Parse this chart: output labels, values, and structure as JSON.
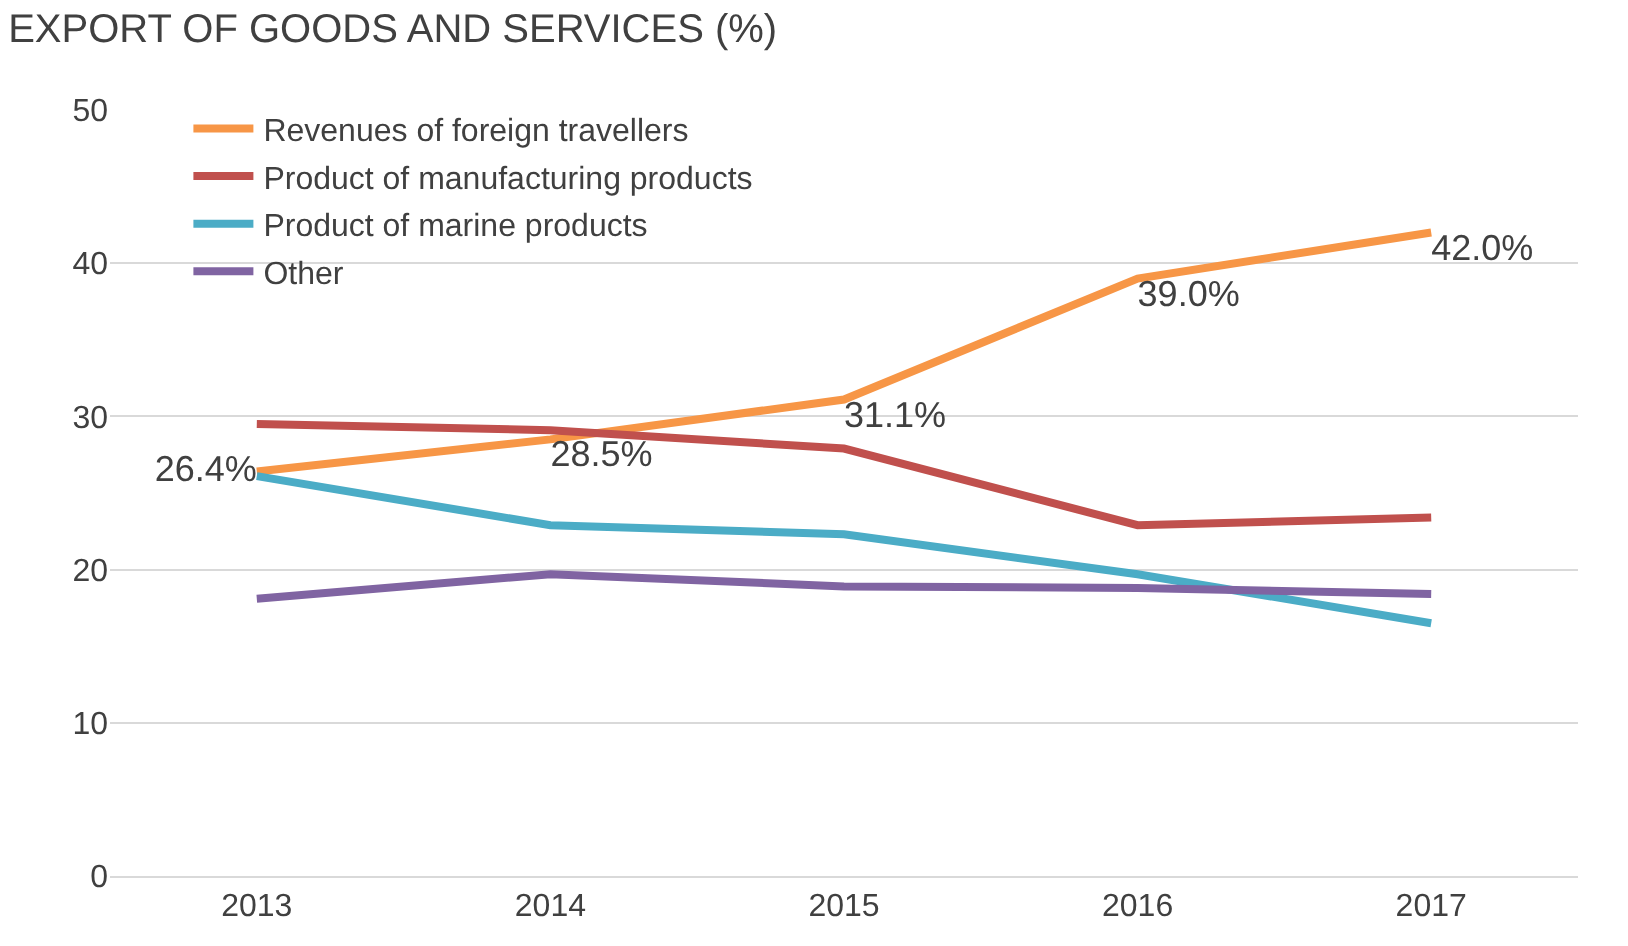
{
  "chart_data": {
    "type": "line",
    "title": "EXPORT OF GOODS AND SERVICES (%)",
    "categories": [
      "2013",
      "2014",
      "2015",
      "2016",
      "2017"
    ],
    "series": [
      {
        "name": "Revenues of foreign travellers",
        "color": "#f79646",
        "values": [
          26.4,
          28.5,
          31.1,
          39.0,
          42.0
        ],
        "value_labels": [
          "26.4%",
          "28.5%",
          "31.1%",
          "39.0%",
          "42.0%"
        ]
      },
      {
        "name": "Product of manufacturing products",
        "color": "#c0504d",
        "values": [
          29.5,
          29.1,
          27.9,
          22.9,
          23.4
        ]
      },
      {
        "name": "Product of marine products",
        "color": "#4bacc6",
        "values": [
          26.1,
          22.9,
          22.3,
          19.7,
          16.5
        ]
      },
      {
        "name": "Other",
        "color": "#8064a2",
        "values": [
          18.1,
          19.7,
          18.9,
          18.8,
          18.4
        ]
      }
    ],
    "ylim": [
      0,
      50
    ],
    "yticks": [
      0,
      10,
      20,
      30,
      40,
      50
    ],
    "grid": "y",
    "legend": "top left",
    "marker": "none",
    "line_style": "solid"
  }
}
